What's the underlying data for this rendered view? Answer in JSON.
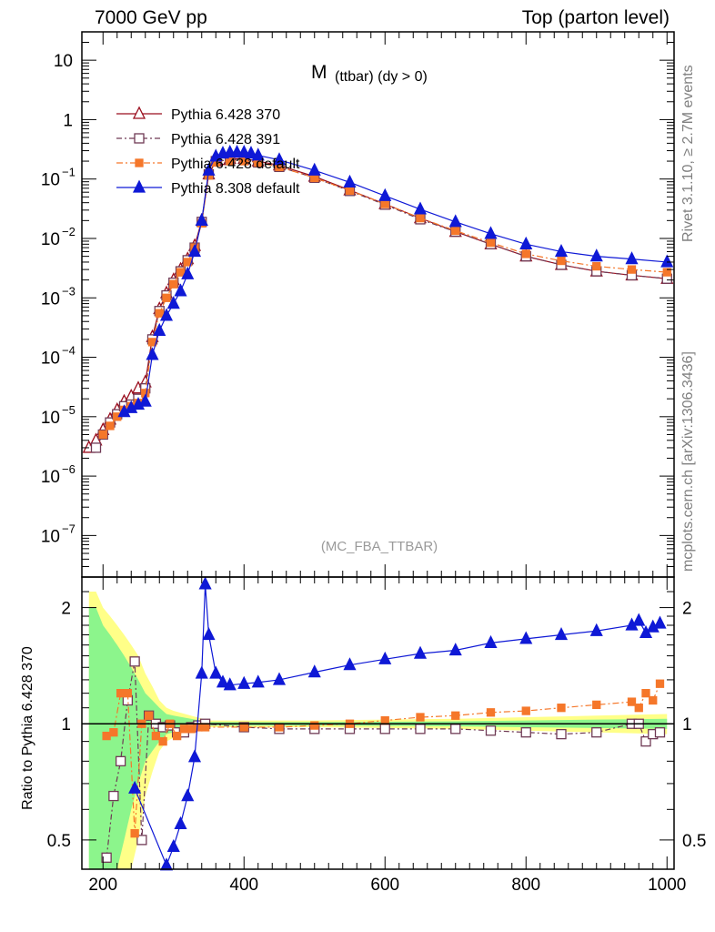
{
  "header": {
    "left": "7000 GeV pp",
    "right": "Top (parton level)"
  },
  "side_labels": {
    "rivet": "Rivet 3.1.10, ≥ 2.7M events",
    "mcplots": "mcplots.cern.ch [arXiv:1306.3436]"
  },
  "chart_data": [
    {
      "type": "line",
      "panel": "main",
      "title_main": "M",
      "title_sub": "(ttbar)  (dy > 0)",
      "annotation": "(MC_FBA_TTBAR)",
      "yscale": "log",
      "xlim": [
        170,
        1010
      ],
      "ylim": [
        2e-08,
        30
      ],
      "xticks": [
        200,
        400,
        600,
        800,
        1000
      ],
      "yticks": [
        {
          "v": 1e-07,
          "base": "10",
          "exp": "−7"
        },
        {
          "v": 1e-06,
          "base": "10",
          "exp": "−6"
        },
        {
          "v": 1e-05,
          "base": "10",
          "exp": "−5"
        },
        {
          "v": 0.0001,
          "base": "10",
          "exp": "−4"
        },
        {
          "v": 0.001,
          "base": "10",
          "exp": "−3"
        },
        {
          "v": 0.01,
          "base": "10",
          "exp": "−2"
        },
        {
          "v": 0.1,
          "base": "10",
          "exp": "−1"
        },
        {
          "v": 1,
          "base": "1",
          "exp": ""
        },
        {
          "v": 10,
          "base": "10",
          "exp": ""
        }
      ],
      "legend_position": "top-left",
      "series": [
        {
          "name": "Pythia 6.428 370",
          "color": "#9b0f1f",
          "marker": "triangle-open",
          "dash": "",
          "x": [
            180,
            190,
            200,
            210,
            220,
            230,
            240,
            250,
            260,
            270,
            280,
            290,
            300,
            310,
            320,
            330,
            340,
            350,
            360,
            370,
            380,
            400,
            420,
            450,
            500,
            550,
            600,
            650,
            700,
            750,
            800,
            850,
            900,
            950,
            1000
          ],
          "y": [
            3e-06,
            4e-06,
            6e-06,
            9e-06,
            1.3e-05,
            1.8e-05,
            2.2e-05,
            3e-05,
            3.8e-05,
            0.00022,
            0.00065,
            0.0012,
            0.002,
            0.003,
            0.0045,
            0.0075,
            0.02,
            0.12,
            0.2,
            0.21,
            0.22,
            0.22,
            0.2,
            0.17,
            0.11,
            0.065,
            0.038,
            0.022,
            0.013,
            0.008,
            0.005,
            0.0036,
            0.0028,
            0.0024,
            0.0021
          ]
        },
        {
          "name": "Pythia 6.428 391",
          "color": "#6f3a55",
          "marker": "square-open",
          "dash": "6,3,2,3",
          "x": [
            190,
            200,
            210,
            220,
            230,
            240,
            250,
            260,
            270,
            280,
            290,
            300,
            310,
            320,
            330,
            340,
            350,
            360,
            380,
            400,
            420,
            450,
            500,
            550,
            600,
            650,
            700,
            750,
            800,
            850,
            900,
            950,
            1000
          ],
          "y": [
            3e-06,
            5e-06,
            8e-06,
            1.1e-05,
            1.5e-05,
            1.6e-05,
            2e-05,
            3e-05,
            0.0002,
            0.0006,
            0.0011,
            0.0018,
            0.0028,
            0.0043,
            0.007,
            0.019,
            0.12,
            0.2,
            0.21,
            0.21,
            0.19,
            0.16,
            0.105,
            0.063,
            0.037,
            0.021,
            0.013,
            0.008,
            0.005,
            0.0036,
            0.0028,
            0.0024,
            0.0021
          ]
        },
        {
          "name": "Pythia 6.428 default",
          "color": "#f5772a",
          "marker": "square-filled",
          "dash": "7,3,2,3",
          "x": [
            200,
            210,
            220,
            230,
            240,
            250,
            260,
            270,
            280,
            290,
            300,
            310,
            320,
            330,
            340,
            350,
            360,
            380,
            400,
            420,
            450,
            500,
            550,
            600,
            650,
            700,
            750,
            800,
            850,
            900,
            950,
            1000
          ],
          "y": [
            5e-06,
            7e-06,
            1e-05,
            1.3e-05,
            1.5e-05,
            1.7e-05,
            2.5e-05,
            0.00018,
            0.00055,
            0.001,
            0.0017,
            0.0027,
            0.004,
            0.007,
            0.018,
            0.115,
            0.19,
            0.2,
            0.2,
            0.19,
            0.16,
            0.105,
            0.064,
            0.038,
            0.022,
            0.0135,
            0.0085,
            0.0055,
            0.0042,
            0.0034,
            0.003,
            0.0027
          ]
        },
        {
          "name": "Pythia 8.308 default",
          "color": "#0f19d6",
          "marker": "triangle-filled",
          "dash": "",
          "x": [
            230,
            240,
            250,
            260,
            270,
            280,
            290,
            300,
            310,
            320,
            330,
            340,
            350,
            360,
            370,
            380,
            390,
            400,
            410,
            420,
            450,
            500,
            550,
            600,
            650,
            700,
            750,
            800,
            850,
            900,
            950,
            1000
          ],
          "y": [
            1.2e-05,
            1.4e-05,
            1.6e-05,
            1.8e-05,
            0.00011,
            0.00028,
            0.0005,
            0.0008,
            0.0013,
            0.0025,
            0.006,
            0.02,
            0.14,
            0.24,
            0.27,
            0.28,
            0.28,
            0.28,
            0.27,
            0.25,
            0.21,
            0.14,
            0.088,
            0.052,
            0.031,
            0.019,
            0.012,
            0.008,
            0.006,
            0.005,
            0.0045,
            0.004
          ]
        }
      ]
    },
    {
      "type": "line",
      "panel": "ratio",
      "ylabel": "Ratio to Pythia 6.428 370",
      "xlim": [
        170,
        1010
      ],
      "ylim": [
        0.42,
        2.4
      ],
      "yscale": "log",
      "xticks": [
        200,
        400,
        600,
        800,
        1000
      ],
      "yticks": [
        0.5,
        1,
        2
      ],
      "reference_line": 1,
      "bands": {
        "yellow_color": "#ffff88",
        "green_color": "#8cf58c",
        "x": [
          180,
          190,
          200,
          210,
          220,
          230,
          240,
          250,
          260,
          270,
          280,
          290,
          300,
          350,
          400,
          500,
          600,
          700,
          800,
          900,
          1000
        ],
        "yellow_half": [
          1.2,
          1.2,
          1.0,
          0.9,
          0.8,
          0.7,
          0.6,
          0.5,
          0.35,
          0.25,
          0.15,
          0.1,
          0.08,
          0.02,
          0.02,
          0.02,
          0.025,
          0.03,
          0.04,
          0.05,
          0.06
        ],
        "green_half": [
          1.0,
          1.0,
          0.8,
          0.7,
          0.6,
          0.5,
          0.4,
          0.3,
          0.2,
          0.15,
          0.1,
          0.06,
          0.05,
          0.01,
          0.01,
          0.01,
          0.012,
          0.015,
          0.02,
          0.025,
          0.03
        ]
      },
      "series": [
        {
          "name": "Pythia 6.428 391",
          "color": "#6f3a55",
          "marker": "square-open",
          "dash": "6,3,2,3",
          "x": [
            205,
            215,
            225,
            235,
            245,
            255,
            265,
            275,
            285,
            295,
            305,
            315,
            325,
            335,
            345,
            400,
            450,
            500,
            550,
            600,
            650,
            700,
            750,
            800,
            850,
            900,
            950,
            960,
            970,
            980,
            990
          ],
          "y": [
            0.45,
            0.65,
            0.8,
            1.15,
            1.45,
            0.5,
            1.05,
            1.0,
            0.98,
            0.99,
            0.95,
            0.95,
            0.98,
            0.99,
            1.0,
            0.98,
            0.97,
            0.97,
            0.97,
            0.97,
            0.97,
            0.97,
            0.96,
            0.95,
            0.94,
            0.95,
            1.0,
            1.0,
            0.9,
            0.94,
            0.95
          ]
        },
        {
          "name": "Pythia 6.428 default",
          "color": "#f5772a",
          "marker": "square-filled",
          "dash": "7,3,2,3",
          "x": [
            205,
            215,
            225,
            235,
            245,
            255,
            265,
            275,
            285,
            295,
            305,
            315,
            325,
            335,
            345,
            400,
            450,
            500,
            550,
            600,
            650,
            700,
            750,
            800,
            850,
            900,
            950,
            960,
            970,
            980,
            990
          ],
          "y": [
            0.93,
            0.95,
            1.2,
            1.2,
            0.52,
            1.0,
            1.05,
            0.93,
            0.9,
            1.0,
            0.93,
            0.97,
            0.97,
            0.98,
            0.98,
            0.98,
            0.98,
            0.99,
            1.0,
            1.02,
            1.04,
            1.05,
            1.07,
            1.08,
            1.1,
            1.12,
            1.14,
            1.1,
            1.2,
            1.15,
            1.27
          ]
        },
        {
          "name": "Pythia 8.308 default",
          "color": "#0f19d6",
          "marker": "triangle-filled",
          "dash": "",
          "x": [
            245,
            290,
            300,
            310,
            320,
            330,
            340,
            345,
            350,
            360,
            370,
            380,
            400,
            420,
            450,
            500,
            550,
            600,
            650,
            700,
            750,
            800,
            850,
            900,
            950,
            960,
            970,
            980,
            990
          ],
          "y": [
            0.68,
            0.43,
            0.48,
            0.55,
            0.65,
            0.82,
            1.35,
            2.3,
            1.7,
            1.35,
            1.28,
            1.26,
            1.27,
            1.28,
            1.3,
            1.36,
            1.42,
            1.47,
            1.52,
            1.55,
            1.62,
            1.66,
            1.7,
            1.74,
            1.8,
            1.85,
            1.72,
            1.78,
            1.82
          ]
        }
      ]
    }
  ]
}
